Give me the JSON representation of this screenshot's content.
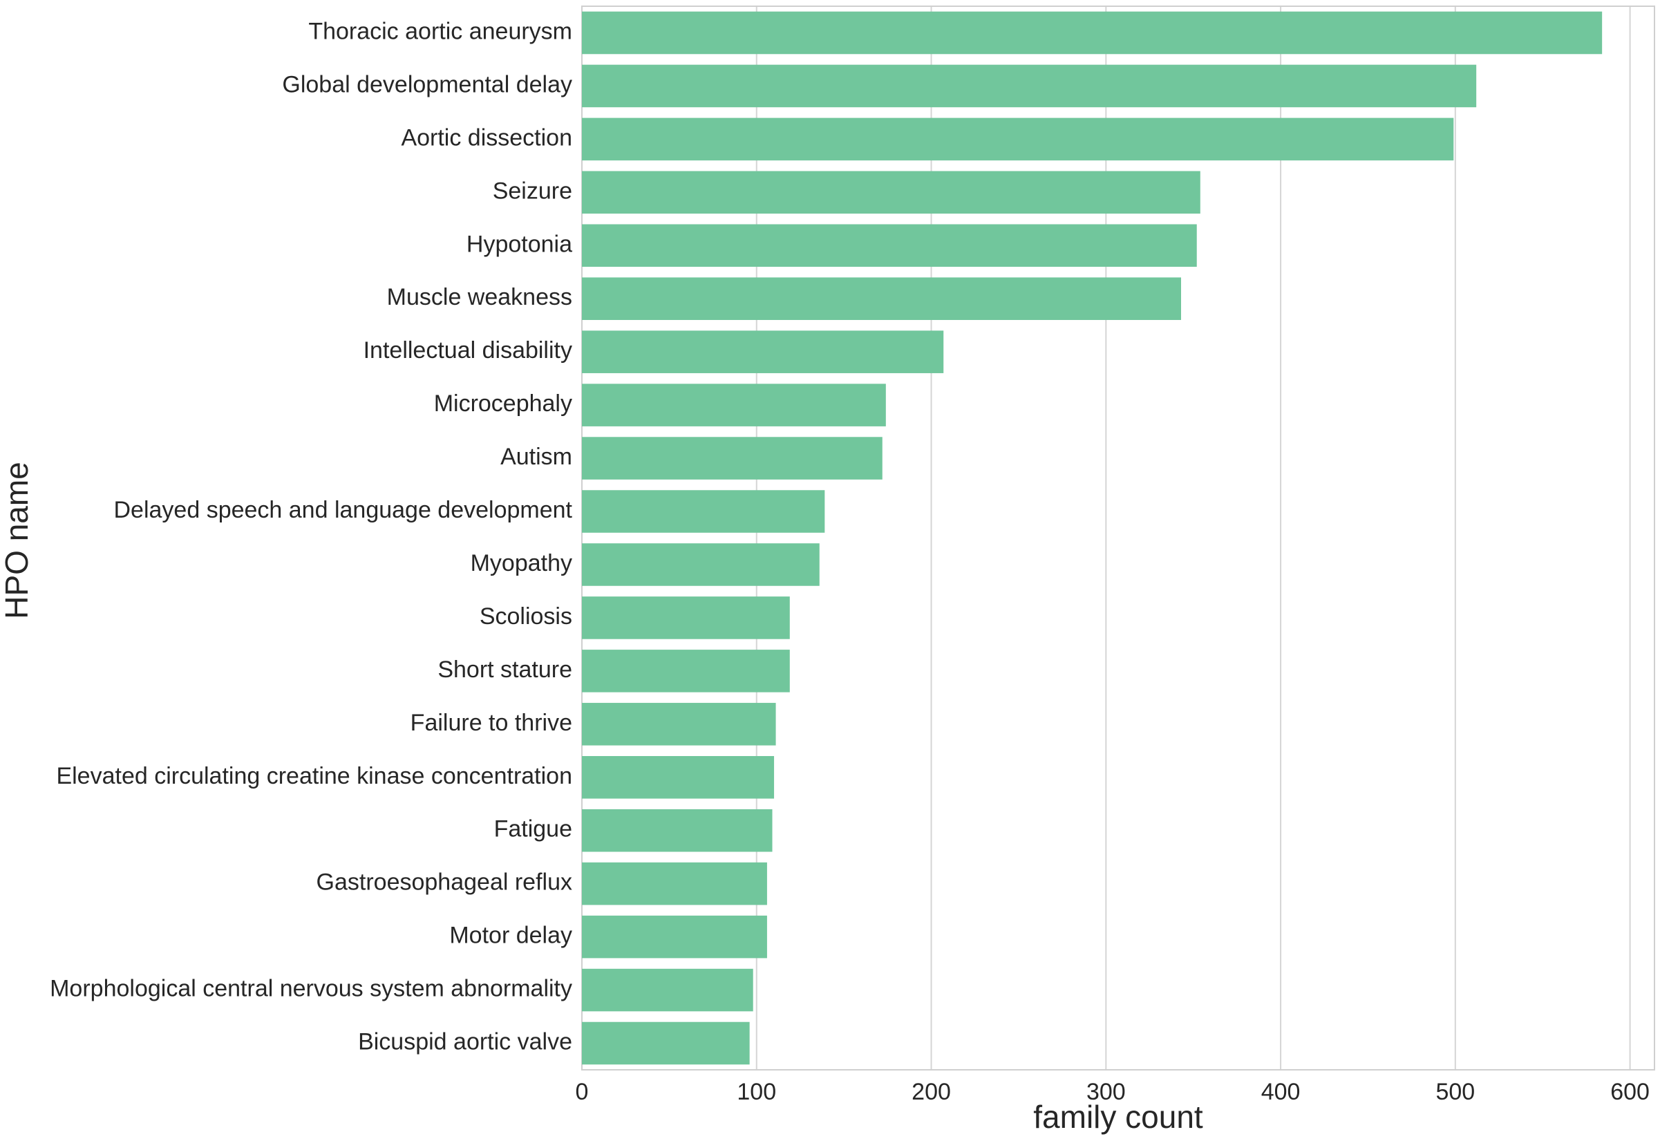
{
  "chart_data": {
    "type": "barh",
    "xlabel": "family count",
    "ylabel": "HPO name",
    "categories": [
      "Thoracic aortic aneurysm",
      "Global developmental delay",
      "Aortic dissection",
      "Seizure",
      "Hypotonia",
      "Muscle weakness",
      "Intellectual disability",
      "Microcephaly",
      "Autism",
      "Delayed speech and language development",
      "Myopathy",
      "Scoliosis",
      "Short stature",
      "Failure to thrive",
      "Elevated circulating creatine kinase concentration",
      "Fatigue",
      "Gastroesophageal reflux",
      "Motor delay",
      "Morphological central nervous system abnormality",
      "Bicuspid aortic valve"
    ],
    "values": [
      584,
      512,
      499,
      354,
      352,
      343,
      207,
      174,
      172,
      139,
      136,
      119,
      119,
      111,
      110,
      109,
      106,
      106,
      98,
      96
    ],
    "color": "#71c69c",
    "xlim": [
      0,
      614
    ],
    "xticks": [
      0,
      100,
      200,
      300,
      400,
      500,
      600
    ],
    "grid": true
  }
}
